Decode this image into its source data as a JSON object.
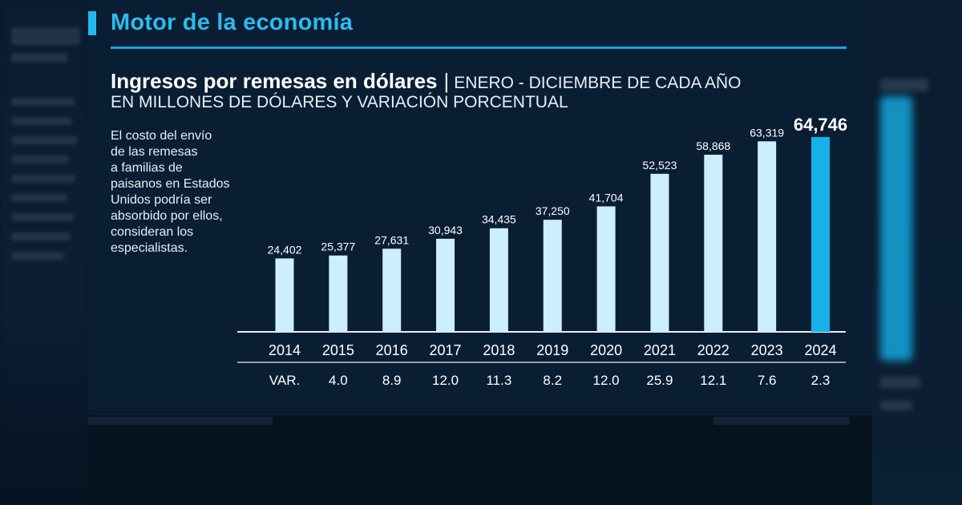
{
  "section": {
    "title": "Motor de la economía"
  },
  "chart": {
    "title_main": "Ingresos por remesas en dólares",
    "title_separator": "|",
    "title_period": "ENERO - DICIEMBRE DE CADA AÑO",
    "subtitle": "EN MILLONES DE DÓLARES Y VARIACIÓN PORCENTUAL"
  },
  "note_lines": [
    "El costo del envío",
    "de las remesas",
    "a familias de",
    "paisanos en Estados",
    "Unidos podría ser",
    "absorbido por ellos,",
    "consideran los",
    "especialistas."
  ],
  "chart_data": {
    "type": "bar",
    "title": "Ingresos por remesas en dólares",
    "subtitle": "ENERO - DICIEMBRE DE CADA AÑO · EN MILLONES DE DÓLARES Y VARIACIÓN PORCENTUAL",
    "categories": [
      "2014",
      "2015",
      "2016",
      "2017",
      "2018",
      "2019",
      "2020",
      "2021",
      "2022",
      "2023",
      "2024"
    ],
    "values": [
      24402,
      25377,
      27631,
      30943,
      34435,
      37250,
      41704,
      52523,
      58868,
      63319,
      64746
    ],
    "value_labels": [
      "24,402",
      "25,377",
      "27,631",
      "30,943",
      "34,435",
      "37,250",
      "41,704",
      "52,523",
      "58,868",
      "63,319",
      "64,746"
    ],
    "variation_label": "VAR.",
    "variation": [
      "",
      "4.0",
      "8.9",
      "12.0",
      "11.3",
      "8.2",
      "12.0",
      "25.9",
      "12.1",
      "7.6",
      "2.3"
    ],
    "highlight_index": 10,
    "ylim": [
      0,
      65000
    ],
    "grid": false,
    "colors": {
      "bar": "#cdeefc",
      "highlight": "#16b1e9",
      "axis": "#e6eef5",
      "text": "#ffffff"
    }
  }
}
